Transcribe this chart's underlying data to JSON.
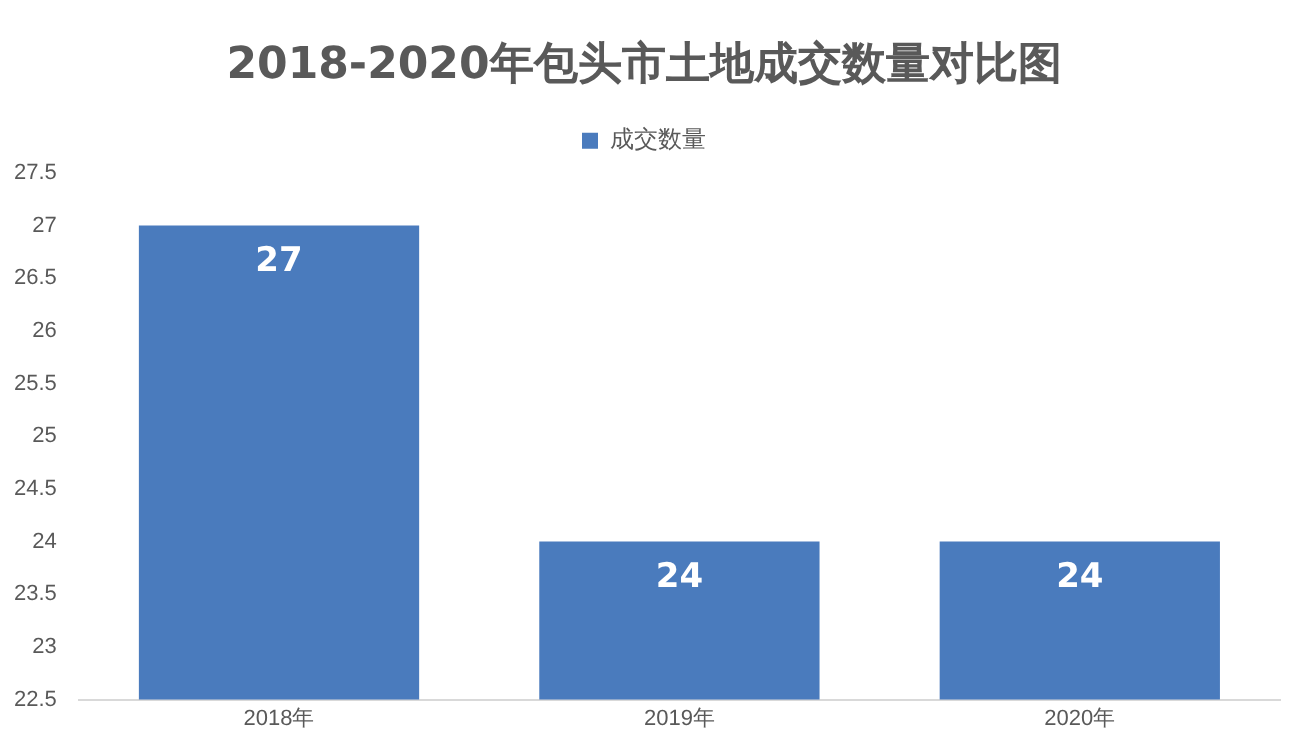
{
  "chart_data": {
    "type": "bar",
    "title": "2018-2020年包头市土地成交数量对比图",
    "categories": [
      "2018年",
      "2019年",
      "2020年"
    ],
    "series": [
      {
        "name": "成交数量",
        "color": "#4a7bbd",
        "values": [
          27,
          24,
          24
        ]
      }
    ],
    "ylim": [
      22.5,
      27.5
    ],
    "yticks": [
      22.5,
      23,
      23.5,
      24,
      24.5,
      25,
      25.5,
      26,
      26.5,
      27,
      27.5
    ],
    "grid": false,
    "legend": "top",
    "data_labels": true
  }
}
